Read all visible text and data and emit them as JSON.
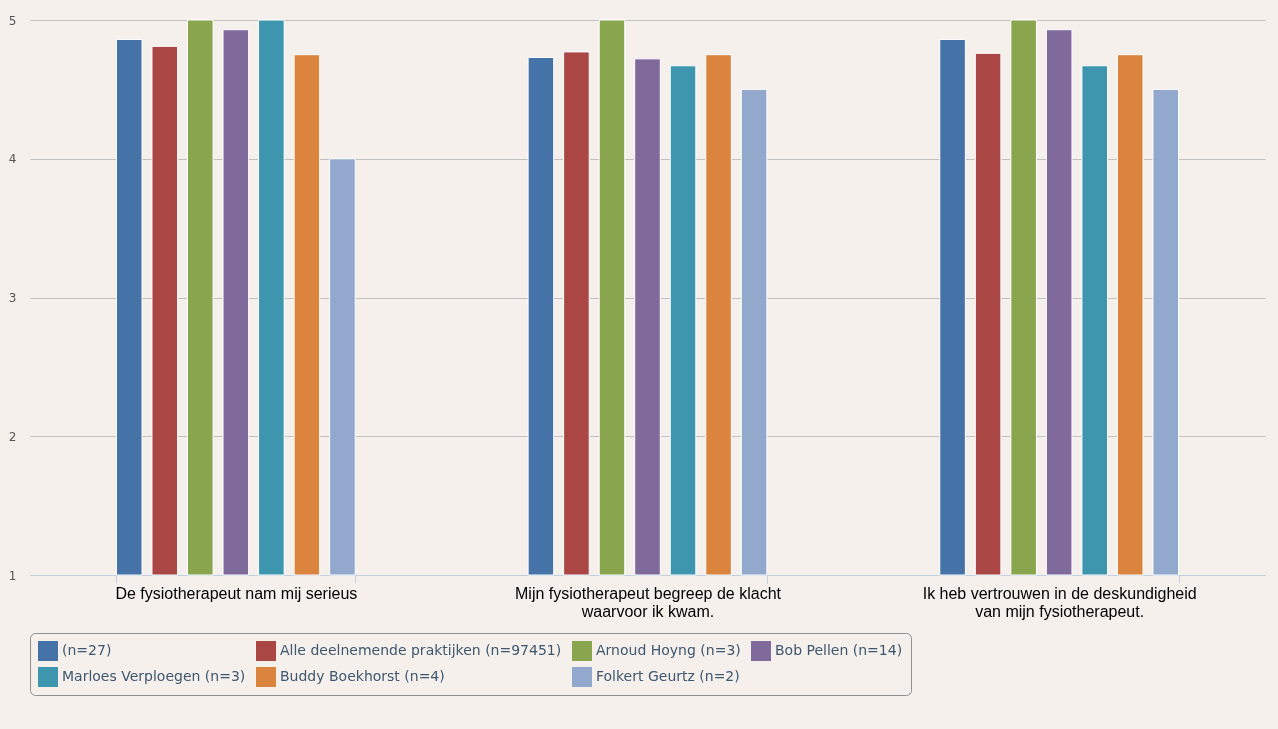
{
  "chart_data": {
    "type": "bar",
    "categories": [
      "De fysiotherapeut nam mij serieus",
      "Mijn fysiotherapeut begreep de klacht waarvoor ik kwam.",
      "Ik heb vertrouwen in de deskundigheid van mijn fysiotherapeut."
    ],
    "series": [
      {
        "name": "(n=27)",
        "color": "#4572a7",
        "values": [
          4.86,
          4.73,
          4.86
        ]
      },
      {
        "name": "Alle deelnemende praktijken (n=97451)",
        "color": "#aa4643",
        "values": [
          4.81,
          4.77,
          4.76
        ]
      },
      {
        "name": "Arnoud Hoyng (n=3)",
        "color": "#89a54e",
        "values": [
          5,
          5,
          5
        ]
      },
      {
        "name": "Bob Pellen (n=14)",
        "color": "#80699b",
        "values": [
          4.93,
          4.72,
          4.93
        ]
      },
      {
        "name": "Marloes Verploegen (n=3)",
        "color": "#3d96ae",
        "values": [
          5,
          4.67,
          4.67
        ]
      },
      {
        "name": "Buddy Boekhorst (n=4)",
        "color": "#db843d",
        "values": [
          4.75,
          4.75,
          4.75
        ]
      },
      {
        "name": "Folkert Geurtz (n=2)",
        "color": "#92a8cd",
        "values": [
          4,
          4.5,
          4.5
        ]
      }
    ],
    "ylim": [
      1,
      5
    ],
    "yticks": [
      1,
      2,
      3,
      4,
      5
    ],
    "grid": "y",
    "legend": "bottom"
  }
}
